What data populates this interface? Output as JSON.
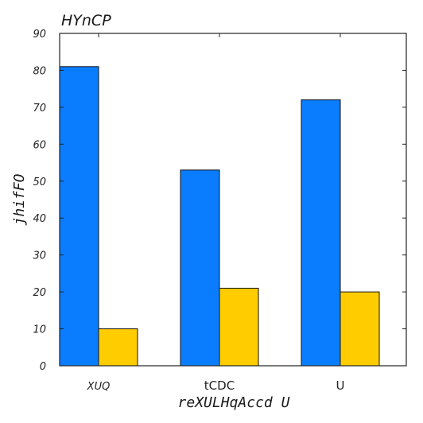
{
  "chart_data": {
    "type": "bar",
    "title": "HYnCP",
    "xlabel": "reXULHqAccd U",
    "ylabel": "jhifFO",
    "categories": [
      "XUQ",
      "tCDC",
      "U"
    ],
    "series": [
      {
        "values": [
          81,
          53,
          72
        ],
        "color": "#0a7dff"
      },
      {
        "values": [
          10,
          21,
          20
        ],
        "color": "#ffcc00"
      }
    ],
    "ylim": [
      0,
      90
    ],
    "yticks": [
      0,
      10,
      20,
      30,
      40,
      50,
      60,
      70,
      80,
      90
    ],
    "grid": false,
    "legend": "none"
  }
}
